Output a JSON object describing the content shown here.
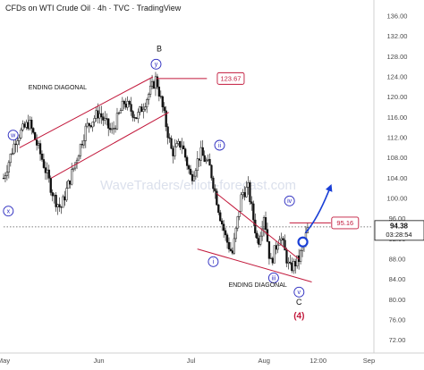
{
  "chart_data": {
    "type": "candlestick",
    "title": "CFDs on WTI Crude Oil · 4h · TVC · TradingView",
    "watermark": "WaveTraders/elliott-forecast.com",
    "ylim": [
      70,
      136
    ],
    "y_ticks": [
      72.0,
      76.0,
      80.0,
      84.0,
      88.0,
      92.0,
      96.0,
      100.0,
      104.0,
      108.0,
      112.0,
      116.0,
      120.0,
      124.0,
      128.0,
      132.0,
      136.0
    ],
    "x_labels": [
      "May",
      "Jun",
      "Jul",
      "Aug",
      "12:00",
      "Sep"
    ],
    "price_path": [
      {
        "t": 0,
        "p": 104.0
      },
      {
        "t": 4,
        "p": 112.0
      },
      {
        "t": 8,
        "p": 115.0
      },
      {
        "t": 12,
        "p": 108.0
      },
      {
        "t": 16,
        "p": 100.0
      },
      {
        "t": 18,
        "p": 98.0
      },
      {
        "t": 22,
        "p": 106.0
      },
      {
        "t": 26,
        "p": 114.0
      },
      {
        "t": 30,
        "p": 117.0
      },
      {
        "t": 34,
        "p": 113.0
      },
      {
        "t": 38,
        "p": 119.0
      },
      {
        "t": 42,
        "p": 116.0
      },
      {
        "t": 46,
        "p": 121.0
      },
      {
        "t": 48,
        "p": 123.7
      },
      {
        "t": 50,
        "p": 118.0
      },
      {
        "t": 53,
        "p": 109.0
      },
      {
        "t": 56,
        "p": 111.0
      },
      {
        "t": 59,
        "p": 104.0
      },
      {
        "t": 62,
        "p": 109.0
      },
      {
        "t": 65,
        "p": 106.0
      },
      {
        "t": 68,
        "p": 97.0
      },
      {
        "t": 70,
        "p": 92.0
      },
      {
        "t": 72,
        "p": 89.0
      },
      {
        "t": 75,
        "p": 101.0
      },
      {
        "t": 77,
        "p": 102.0
      },
      {
        "t": 80,
        "p": 91.0
      },
      {
        "t": 82,
        "p": 97.0
      },
      {
        "t": 84,
        "p": 87.0
      },
      {
        "t": 87,
        "p": 93.0
      },
      {
        "t": 90,
        "p": 86.0
      },
      {
        "t": 93,
        "p": 88.0
      },
      {
        "t": 96,
        "p": 94.4
      }
    ],
    "last_price": "94.38",
    "countdown": "03:28:54",
    "levels": [
      {
        "label": "123.67",
        "price": 123.67
      },
      {
        "label": "95.16",
        "price": 95.16
      }
    ],
    "dotted_line_price": 94.38,
    "wave_labels": [
      {
        "text": "w",
        "t": 3,
        "p": 112.5
      },
      {
        "text": "x",
        "t": 1.5,
        "p": 97.5
      },
      {
        "text": "y",
        "t": 48,
        "p": 126.5
      },
      {
        "text": "ii",
        "t": 68,
        "p": 110.5
      },
      {
        "text": "i",
        "t": 66,
        "p": 87.5
      },
      {
        "text": "iii",
        "t": 85,
        "p": 84.3
      },
      {
        "text": "iv",
        "t": 90,
        "p": 99.5
      },
      {
        "text": "v",
        "t": 93,
        "p": 81.5
      }
    ],
    "letter_labels": [
      {
        "text": "B",
        "t": 49,
        "p": 129.0
      },
      {
        "text": "C",
        "t": 93,
        "p": 79.0
      }
    ],
    "degree_label": {
      "text": "(4)",
      "t": 93,
      "p": 76.3
    },
    "annotations": [
      {
        "text": "ENDING DIAGONAL",
        "t": 17,
        "p": 121.5
      },
      {
        "text": "ENDING DIAGONAL",
        "t": 80,
        "p": 82.5
      }
    ],
    "grid": false
  }
}
